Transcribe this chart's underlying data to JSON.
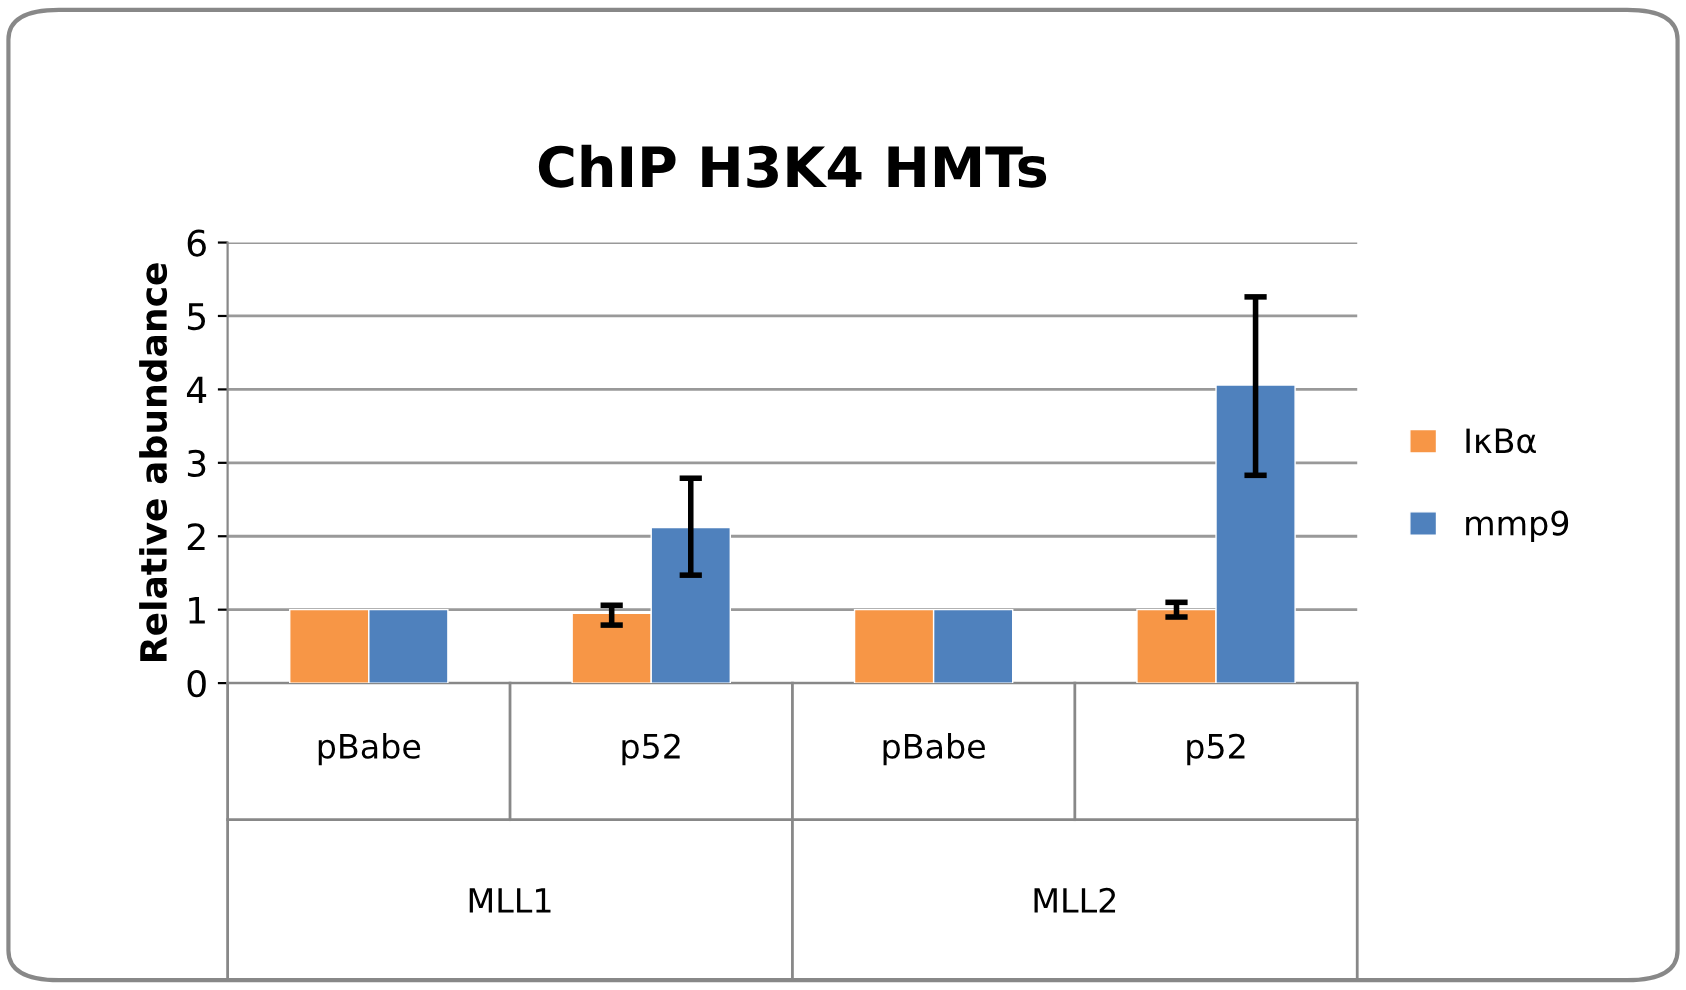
{
  "chart_data": {
    "type": "bar",
    "title": "ChIP H3K4 HMTs",
    "ylabel": "Relative abundance",
    "categories": [
      "pBabe",
      "p52",
      "pBabe",
      "p52"
    ],
    "series": [
      {
        "name": "IκBα",
        "color": "#f79646",
        "values": [
          1,
          0.95,
          1,
          1.0
        ],
        "errors": [
          null,
          [
            0.79,
            1.06
          ],
          null,
          [
            0.9,
            1.1
          ]
        ]
      },
      {
        "name": "mmp9",
        "color": "#4f81bd",
        "values": [
          1,
          2.12,
          1,
          4.06
        ],
        "errors": [
          null,
          [
            1.47,
            2.79
          ],
          null,
          [
            2.83,
            5.26
          ]
        ]
      }
    ],
    "annotations": [
      "MLL1",
      "MLL2"
    ],
    "ylim": [
      0,
      6
    ],
    "yticks": [
      0,
      1,
      2,
      3,
      4,
      5,
      6
    ],
    "grid": "y",
    "legend": "right"
  }
}
